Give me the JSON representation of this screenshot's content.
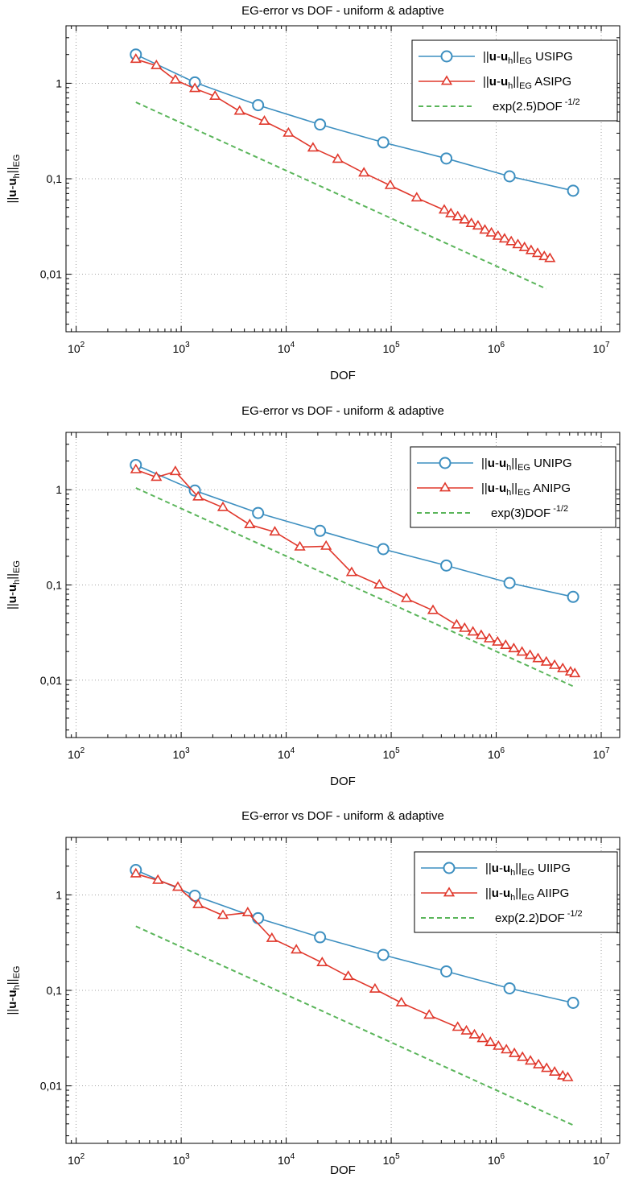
{
  "chart_data": [
    {
      "type": "line",
      "title": "EG-error vs DOF - uniform & adaptive",
      "xlabel": "DOF",
      "ylabel": {
        "pre": "||",
        "b1": "u",
        "dash": "-",
        "b2": "u",
        "sub1": "h",
        "mid": "||",
        "sub2": "EG"
      },
      "xscale": "log",
      "yscale": "log",
      "xlim": [
        80,
        15000000
      ],
      "ylim": [
        0.0025,
        4
      ],
      "grid": true,
      "legend_position": "top-right",
      "x_ticks": [
        {
          "base": "10",
          "exp": "2"
        },
        {
          "base": "10",
          "exp": "3"
        },
        {
          "base": "10",
          "exp": "4"
        },
        {
          "base": "10",
          "exp": "5"
        },
        {
          "base": "10",
          "exp": "6"
        },
        {
          "base": "10",
          "exp": "7"
        }
      ],
      "y_ticks": [
        "1",
        "0,1",
        "0,01"
      ],
      "series": [
        {
          "name_pre": "||",
          "name_b1": "u",
          "name_dash": "-",
          "name_b2": "u",
          "name_sub1": "h",
          "name_mid": "||",
          "name_sub2": "EG",
          "name_post": " USIPG",
          "color": "#3d8fc0",
          "marker": "circle",
          "style": "solid",
          "x": [
            370,
            1350,
            5400,
            21000,
            84000,
            335000,
            1340000,
            5400000
          ],
          "y": [
            2.0,
            1.02,
            0.59,
            0.37,
            0.24,
            0.163,
            0.106,
            0.075
          ]
        },
        {
          "name_pre": "||",
          "name_b1": "u",
          "name_dash": "-",
          "name_b2": "u",
          "name_sub1": "h",
          "name_mid": "||",
          "name_sub2": "EG",
          "name_post": " ASIPG",
          "color": "#e0382c",
          "marker": "triangle",
          "style": "solid",
          "x": [
            370,
            580,
            880,
            1350,
            2100,
            3600,
            6200,
            10500,
            18000,
            31000,
            55000,
            98000,
            175000,
            320000,
            370000,
            430000,
            500000,
            580000,
            670000,
            780000,
            900000,
            1040000,
            1200000,
            1390000,
            1610000,
            1860000,
            2150000,
            2480000,
            2870000,
            3250000
          ],
          "y": [
            1.78,
            1.53,
            1.08,
            0.88,
            0.73,
            0.51,
            0.4,
            0.3,
            0.21,
            0.16,
            0.115,
            0.085,
            0.063,
            0.047,
            0.043,
            0.04,
            0.037,
            0.034,
            0.032,
            0.029,
            0.027,
            0.025,
            0.0234,
            0.0219,
            0.0204,
            0.019,
            0.0177,
            0.0165,
            0.0153,
            0.0146
          ]
        },
        {
          "name": "exp(2.5)DOF",
          "name_sup": "-1/2",
          "color": "#5ab55a",
          "marker": "none",
          "style": "dashed",
          "x": [
            370,
            3000000
          ],
          "y": [
            0.633,
            0.00703
          ]
        }
      ]
    },
    {
      "type": "line",
      "title": "EG-error vs DOF - uniform & adaptive",
      "xlabel": "DOF",
      "ylabel": {
        "pre": "||",
        "b1": "u",
        "dash": "-",
        "b2": "u",
        "sub1": "h",
        "mid": "||",
        "sub2": "EG"
      },
      "xscale": "log",
      "yscale": "log",
      "xlim": [
        80,
        15000000
      ],
      "ylim": [
        0.0025,
        4
      ],
      "grid": true,
      "legend_position": "top-right",
      "x_ticks": [
        {
          "base": "10",
          "exp": "2"
        },
        {
          "base": "10",
          "exp": "3"
        },
        {
          "base": "10",
          "exp": "4"
        },
        {
          "base": "10",
          "exp": "5"
        },
        {
          "base": "10",
          "exp": "6"
        },
        {
          "base": "10",
          "exp": "7"
        }
      ],
      "y_ticks": [
        "1",
        "0,1",
        "0,01"
      ],
      "series": [
        {
          "name_pre": "||",
          "name_b1": "u",
          "name_dash": "-",
          "name_b2": "u",
          "name_sub1": "h",
          "name_mid": "||",
          "name_sub2": "EG",
          "name_post": " UNIPG",
          "color": "#3d8fc0",
          "marker": "circle",
          "style": "solid",
          "x": [
            370,
            1350,
            5400,
            21000,
            84000,
            335000,
            1340000,
            5400000
          ],
          "y": [
            1.82,
            0.98,
            0.57,
            0.37,
            0.238,
            0.16,
            0.105,
            0.075
          ]
        },
        {
          "name_pre": "||",
          "name_b1": "u",
          "name_dash": "-",
          "name_b2": "u",
          "name_sub1": "h",
          "name_mid": "||",
          "name_sub2": "EG",
          "name_post": " ANIPG",
          "color": "#e0382c",
          "marker": "triangle",
          "style": "solid",
          "x": [
            370,
            580,
            880,
            1450,
            2500,
            4500,
            7800,
            13500,
            24000,
            42000,
            77000,
            140000,
            250000,
            420000,
            500000,
            600000,
            720000,
            860000,
            1030000,
            1230000,
            1470000,
            1760000,
            2100000,
            2500000,
            3000000,
            3600000,
            4300000,
            5100000,
            5600000
          ],
          "y": [
            1.62,
            1.35,
            1.55,
            0.84,
            0.65,
            0.43,
            0.36,
            0.25,
            0.255,
            0.135,
            0.1,
            0.072,
            0.054,
            0.038,
            0.035,
            0.032,
            0.0295,
            0.0272,
            0.0251,
            0.0232,
            0.0214,
            0.0197,
            0.0182,
            0.0168,
            0.0155,
            0.0143,
            0.0132,
            0.0122,
            0.0117
          ]
        },
        {
          "name": "exp(3)DOF",
          "name_sup": "-1/2",
          "color": "#5ab55a",
          "marker": "none",
          "style": "dashed",
          "x": [
            370,
            5500000
          ],
          "y": [
            1.044,
            0.00856
          ]
        }
      ]
    },
    {
      "type": "line",
      "title": "EG-error vs DOF - uniform & adaptive",
      "xlabel": "DOF",
      "ylabel": {
        "pre": "||",
        "b1": "u",
        "dash": "-",
        "b2": "u",
        "sub1": "h",
        "mid": "||",
        "sub2": "EG"
      },
      "xscale": "log",
      "yscale": "log",
      "xlim": [
        80,
        15000000
      ],
      "ylim": [
        0.0025,
        4
      ],
      "grid": true,
      "legend_position": "top-right",
      "x_ticks": [
        {
          "base": "10",
          "exp": "2"
        },
        {
          "base": "10",
          "exp": "3"
        },
        {
          "base": "10",
          "exp": "4"
        },
        {
          "base": "10",
          "exp": "5"
        },
        {
          "base": "10",
          "exp": "6"
        },
        {
          "base": "10",
          "exp": "7"
        }
      ],
      "y_ticks": [
        "1",
        "0,1",
        "0,01"
      ],
      "series": [
        {
          "name_pre": "||",
          "name_b1": "u",
          "name_dash": "-",
          "name_b2": "u",
          "name_sub1": "h",
          "name_mid": "||",
          "name_sub2": "EG",
          "name_post": " UIIPG",
          "color": "#3d8fc0",
          "marker": "circle",
          "style": "solid",
          "x": [
            370,
            1350,
            5400,
            21000,
            84000,
            335000,
            1340000,
            5400000
          ],
          "y": [
            1.82,
            0.98,
            0.57,
            0.36,
            0.235,
            0.158,
            0.105,
            0.074
          ]
        },
        {
          "name_pre": "||",
          "name_b1": "u",
          "name_dash": "-",
          "name_b2": "u",
          "name_sub1": "h",
          "name_mid": "||",
          "name_sub2": "EG",
          "name_post": " AIIPG",
          "color": "#e0382c",
          "marker": "triangle",
          "style": "solid",
          "x": [
            370,
            600,
            930,
            1450,
            2500,
            4300,
            7300,
            12500,
            22000,
            39000,
            70000,
            125000,
            230000,
            430000,
            520000,
            620000,
            740000,
            880000,
            1050000,
            1250000,
            1490000,
            1780000,
            2120000,
            2530000,
            3020000,
            3600000,
            4300000,
            4800000
          ],
          "y": [
            1.66,
            1.42,
            1.2,
            0.79,
            0.61,
            0.65,
            0.35,
            0.265,
            0.195,
            0.14,
            0.103,
            0.074,
            0.055,
            0.041,
            0.0375,
            0.0342,
            0.0312,
            0.0285,
            0.026,
            0.0238,
            0.0218,
            0.0199,
            0.0182,
            0.0166,
            0.0152,
            0.0139,
            0.0127,
            0.0122
          ]
        },
        {
          "name": "exp(2.2)DOF",
          "name_sup": "-1/2",
          "color": "#5ab55a",
          "marker": "none",
          "style": "dashed",
          "x": [
            370,
            5500000
          ],
          "y": [
            0.469,
            0.00385
          ]
        }
      ]
    }
  ]
}
